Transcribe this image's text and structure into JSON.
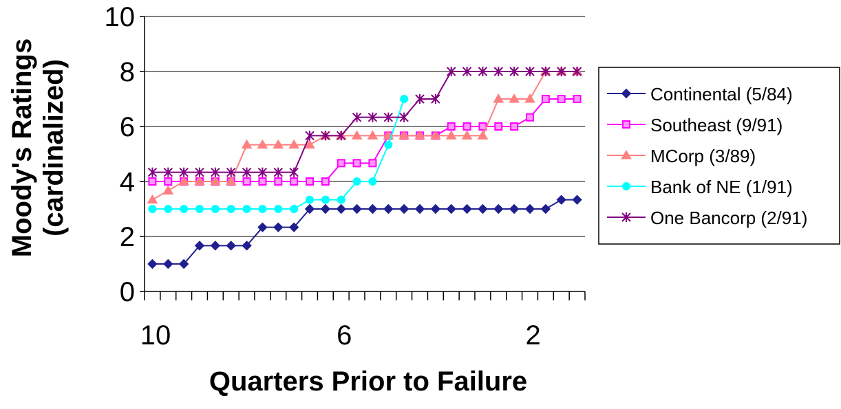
{
  "chart_data": {
    "type": "line",
    "title": "",
    "xlabel": "Quarters Prior to Failure",
    "ylabel_line1": "Moody's Ratings",
    "ylabel_line2": "(cardinalized)",
    "ylim": [
      0,
      10
    ],
    "yticks": [
      "0",
      "2",
      "4",
      "6",
      "8",
      "10"
    ],
    "xticks": [
      "10",
      "6",
      "2"
    ],
    "grid": "horizontal",
    "legend_placement": "right",
    "n_points": 28,
    "series": [
      {
        "name": "Continental (5/84)",
        "color": "#1f1f8f",
        "marker": "diamond",
        "values": [
          1,
          1,
          1,
          1.667,
          1.667,
          1.667,
          1.667,
          2.333,
          2.333,
          2.333,
          3,
          3,
          3,
          3,
          3,
          3,
          3,
          3,
          3,
          3,
          3,
          3,
          3,
          3,
          3,
          3,
          3.333,
          3.333
        ]
      },
      {
        "name": "Southeast (9/91)",
        "color": "#ff00ff",
        "marker": "square",
        "values": [
          4,
          4,
          4,
          4,
          4,
          4,
          4,
          4,
          4,
          4,
          4,
          4,
          4.667,
          4.667,
          4.667,
          5.667,
          5.667,
          5.667,
          5.667,
          6,
          6,
          6,
          6,
          6,
          6.333,
          7,
          7,
          7
        ]
      },
      {
        "name": "MCorp (3/89)",
        "color": "#ff8080",
        "marker": "triangle",
        "values": [
          3.333,
          3.667,
          4,
          4,
          4,
          4,
          5.333,
          5.333,
          5.333,
          5.333,
          5.333,
          5.667,
          5.667,
          5.667,
          5.667,
          5.667,
          5.667,
          5.667,
          5.667,
          5.667,
          5.667,
          5.667,
          7,
          7,
          7,
          8,
          8,
          8
        ]
      },
      {
        "name": "Bank of NE (1/91)",
        "color": "#00ffff",
        "marker": "circle",
        "values": [
          3,
          3,
          3,
          3,
          3,
          3,
          3,
          3,
          3,
          3,
          3.333,
          3.333,
          3.333,
          4,
          4,
          5.333,
          7,
          null,
          null,
          null,
          null,
          null,
          null,
          null,
          null,
          null,
          null,
          null
        ]
      },
      {
        "name": "One Bancorp (2/91)",
        "color": "#800080",
        "marker": "asterisk",
        "values": [
          4.333,
          4.333,
          4.333,
          4.333,
          4.333,
          4.333,
          4.333,
          4.333,
          4.333,
          4.333,
          5.667,
          5.667,
          5.667,
          6.333,
          6.333,
          6.333,
          6.333,
          7,
          7,
          8,
          8,
          8,
          8,
          8,
          8,
          8,
          8,
          8
        ]
      }
    ]
  }
}
